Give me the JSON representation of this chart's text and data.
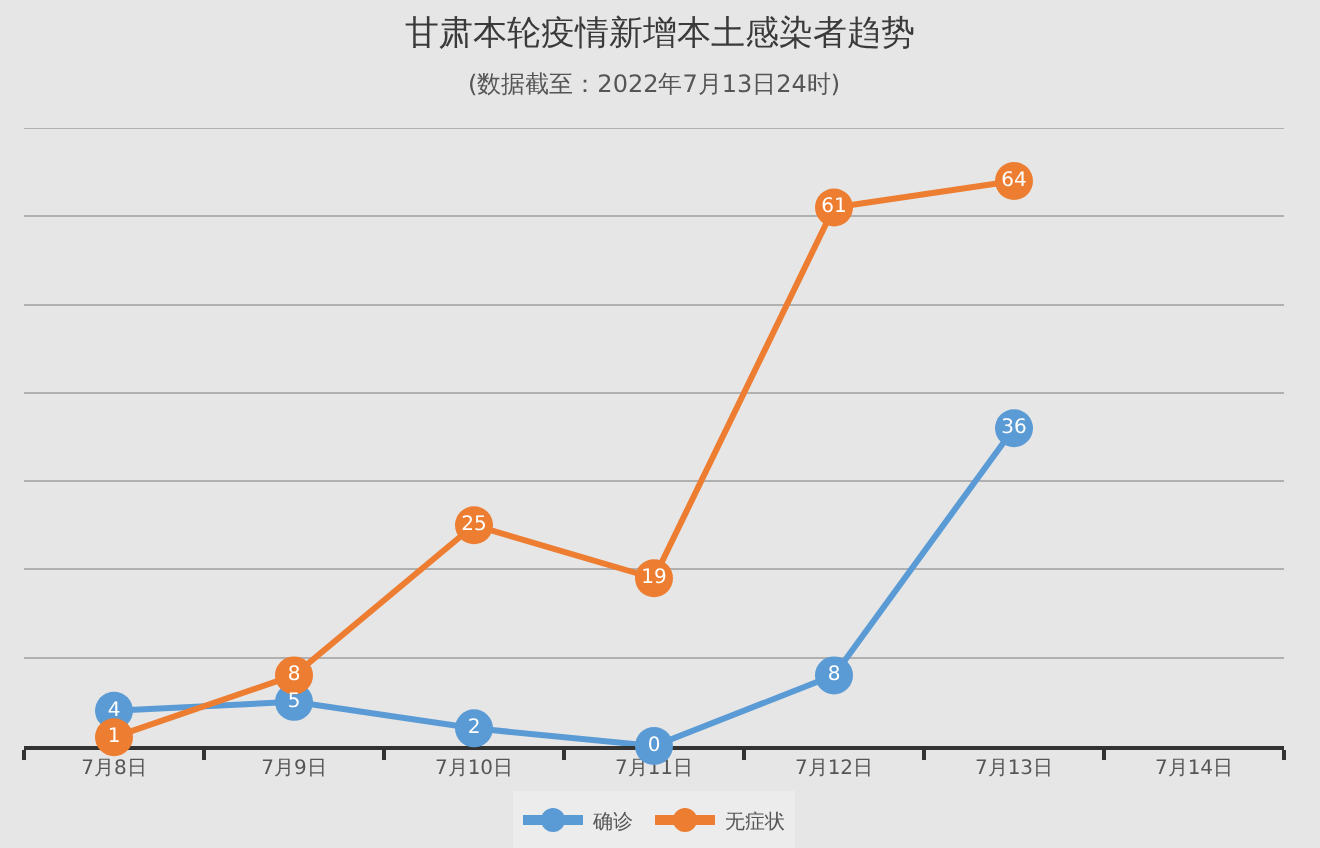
{
  "chart_data": {
    "type": "line",
    "title": "甘肃本轮疫情新增本土感染者趋势",
    "subtitle": "(数据截至：2022年7月13日24时)",
    "categories": [
      "7月8日",
      "7月9日",
      "7月10日",
      "7月11日",
      "7月12日",
      "7月13日",
      "7月14日"
    ],
    "series": [
      {
        "name": "确诊",
        "color": "#5b9bd5",
        "values": [
          4,
          5,
          2,
          0,
          8,
          36,
          null
        ]
      },
      {
        "name": "无症状",
        "color": "#ed7d31",
        "values": [
          1,
          8,
          25,
          19,
          61,
          64,
          null
        ]
      }
    ],
    "ylim": [
      0,
      70
    ],
    "yticks": [
      {
        "value": 0,
        "label": null
      },
      {
        "value": 10,
        "label": null
      },
      {
        "value": 20,
        "label": null
      },
      {
        "value": 30,
        "label": null
      },
      {
        "value": 40,
        "label": null
      },
      {
        "value": 50,
        "label": null
      },
      {
        "value": 60,
        "label": null
      },
      {
        "value": 70,
        "label": null
      }
    ],
    "grid": "y",
    "legend": "bottom",
    "marker": "circle",
    "data_labels": true,
    "tick_labels": "x"
  }
}
